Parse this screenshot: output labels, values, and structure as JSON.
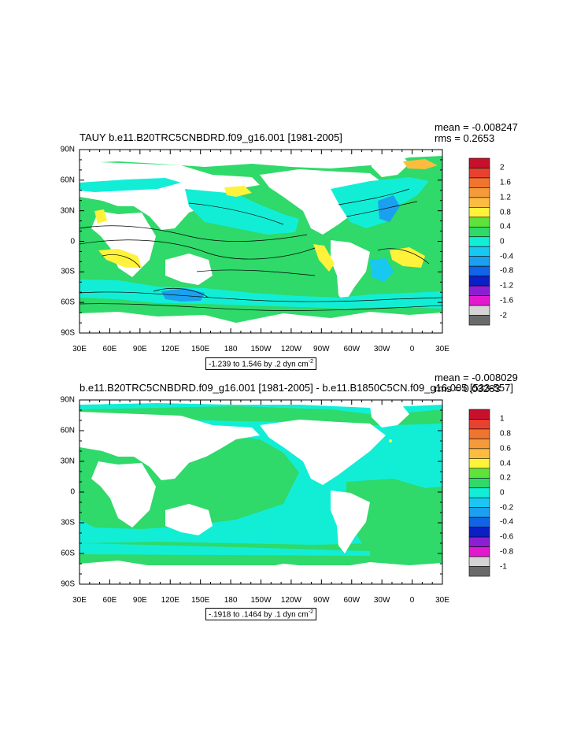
{
  "panels": [
    {
      "title": "TAUY b.e11.B20TRC5CNBDRD.f09_g16.001 [1981-2005]",
      "mean": "mean = -0.008247",
      "rms": "rms = 0.2653",
      "range_text": "-1.239 to 1.546 by .2 dyn cm",
      "range_exp": "-2",
      "colorbar_labels": [
        "2",
        "1.6",
        "1.2",
        "0.8",
        "0.4",
        "0",
        "-0.4",
        "-0.8",
        "-1.2",
        "-1.6",
        "-2"
      ],
      "colorbar_colors": [
        "#c8102e",
        "#e8412f",
        "#f0742e",
        "#f59a3a",
        "#fbbc3f",
        "#fff23a",
        "#5fe33c",
        "#2fd96a",
        "#12eed6",
        "#18c8f0",
        "#1aa0ef",
        "#1164e6",
        "#0a1fc4",
        "#8b1fd1",
        "#e219cf",
        "#d4d4d4",
        "#6a6a6a"
      ]
    },
    {
      "title": "b.e11.B20TRC5CNBDRD.f09_g16.001 [1981-2005] - b.e11.B1850C5CN.f09_g16.005 [533-557]",
      "mean": "mean = -0.008029",
      "rms": "rms = 0.03263",
      "range_text": "-.1918 to .1464 by .1 dyn cm",
      "range_exp": "-2",
      "colorbar_labels": [
        "1",
        "0.8",
        "0.6",
        "0.4",
        "0.2",
        "0",
        "-0.2",
        "-0.4",
        "-0.6",
        "-0.8",
        "-1"
      ],
      "colorbar_colors": [
        "#c8102e",
        "#e8412f",
        "#f0742e",
        "#f59a3a",
        "#fbbc3f",
        "#fff23a",
        "#5fe33c",
        "#2fd96a",
        "#12eed6",
        "#18c8f0",
        "#1aa0ef",
        "#1164e6",
        "#0a1fc4",
        "#8b1fd1",
        "#e219cf",
        "#d4d4d4",
        "#6a6a6a"
      ]
    }
  ],
  "axes": {
    "x_ticks": [
      "30E",
      "60E",
      "90E",
      "120E",
      "150E",
      "180",
      "150W",
      "120W",
      "90W",
      "60W",
      "30W",
      "0",
      "30E"
    ],
    "y_ticks": [
      "90N",
      "60N",
      "30N",
      "0",
      "30S",
      "60S",
      "90S"
    ]
  },
  "chart_data": [
    {
      "type": "heatmap",
      "title": "TAUY b.e11.B20TRC5CNBDRD.f09_g16.001 [1981-2005]",
      "x_range": [
        "30E",
        "30E"
      ],
      "y_range": [
        "90S",
        "90N"
      ],
      "min": -1.239,
      "max": 1.546,
      "contour_interval": 0.2,
      "units": "dyn cm-2",
      "colorbar_levels": [
        -2,
        -1.6,
        -1.2,
        -0.8,
        -0.4,
        0,
        0.4,
        0.8,
        1.2,
        1.6,
        2
      ],
      "mean": -0.008247,
      "rms": 0.2653
    },
    {
      "type": "heatmap",
      "title": "b.e11.B20TRC5CNBDRD.f09_g16.001 [1981-2005] - b.e11.B1850C5CN.f09_g16.005 [533-557]",
      "x_range": [
        "30E",
        "30E"
      ],
      "y_range": [
        "90S",
        "90N"
      ],
      "min": -0.1918,
      "max": 0.1464,
      "contour_interval": 0.1,
      "units": "dyn cm-2",
      "colorbar_levels": [
        -1,
        -0.8,
        -0.6,
        -0.4,
        -0.2,
        0,
        0.2,
        0.4,
        0.6,
        0.8,
        1
      ],
      "mean": -0.008029,
      "rms": 0.03263
    }
  ]
}
